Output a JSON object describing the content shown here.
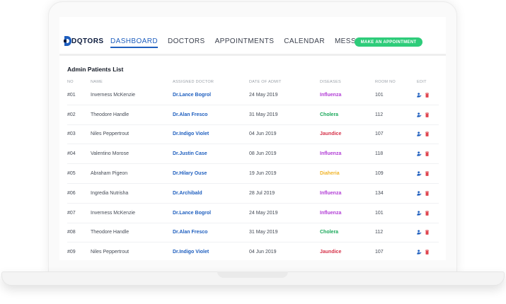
{
  "app": {
    "brand": "DQTORS"
  },
  "nav": {
    "items": [
      {
        "label": "DASHBOARD",
        "active": true
      },
      {
        "label": "DOCTORS",
        "active": false
      },
      {
        "label": "APPOINTMENTS",
        "active": false
      },
      {
        "label": "CALENDAR",
        "active": false
      },
      {
        "label": "MESSAGES",
        "active": false
      }
    ],
    "appointment_button": "MAKE AN APPOINTMENT"
  },
  "list": {
    "title": "Admin Patients List",
    "headers": {
      "no": "NO",
      "name": "NAME",
      "doctor": "ASSIGNED DOCTOR",
      "date": "DATE OF ADMIT",
      "disease": "DISEASES",
      "room": "ROOM NO",
      "edit": "EDIT"
    },
    "rows": [
      {
        "no": "#01",
        "name": "Inverness McKenzie",
        "doctor": "Dr.Lance Bogrol",
        "date": "24 May 2019",
        "disease": "Influenza",
        "room": "101"
      },
      {
        "no": "#02",
        "name": "Theodore Handle",
        "doctor": "Dr.Alan Fresco",
        "date": "31 May 2019",
        "disease": "Cholera",
        "room": "112"
      },
      {
        "no": "#03",
        "name": "Niles Peppertrout",
        "doctor": "Dr.Indigo Violet",
        "date": "04 Jun 2019",
        "disease": "Jaundice",
        "room": "107"
      },
      {
        "no": "#04",
        "name": "Valentino Morose",
        "doctor": "Dr.Justin Case",
        "date": "08 Jun 2019",
        "disease": "Influenza",
        "room": "118"
      },
      {
        "no": "#05",
        "name": "Abraham Pigeon",
        "doctor": "Dr.Hilary Ouse",
        "date": "19 Jun 2019",
        "disease": "Diaheria",
        "room": "109"
      },
      {
        "no": "#06",
        "name": "Ingredia Nutrisha",
        "doctor": "Dr.Archibald",
        "date": "28 Jul 2019",
        "disease": "Influenza",
        "room": "134"
      },
      {
        "no": "#07",
        "name": "Inverness McKenzie",
        "doctor": "Dr.Lance Bogrol",
        "date": "24 May 2019",
        "disease": "Influenza",
        "room": "101"
      },
      {
        "no": "#08",
        "name": "Theodore Handle",
        "doctor": "Dr.Alan Fresco",
        "date": "31 May 2019",
        "disease": "Cholera",
        "room": "112"
      },
      {
        "no": "#09",
        "name": "Niles Peppertrout",
        "doctor": "Dr.Indigo Violet",
        "date": "04 Jun 2019",
        "disease": "Jaundice",
        "room": "107"
      }
    ]
  },
  "colors": {
    "accent": "#1f5fbf",
    "button": "#2ecc7a",
    "Influenza": "#b23ed6",
    "Cholera": "#1aa85a",
    "Jaundice": "#d6334a",
    "Diaheria": "#f0b429",
    "delete": "#e0454f"
  },
  "icons": {
    "logo": "brand-d-icon",
    "edit": "user-edit-icon",
    "delete": "trash-icon"
  }
}
